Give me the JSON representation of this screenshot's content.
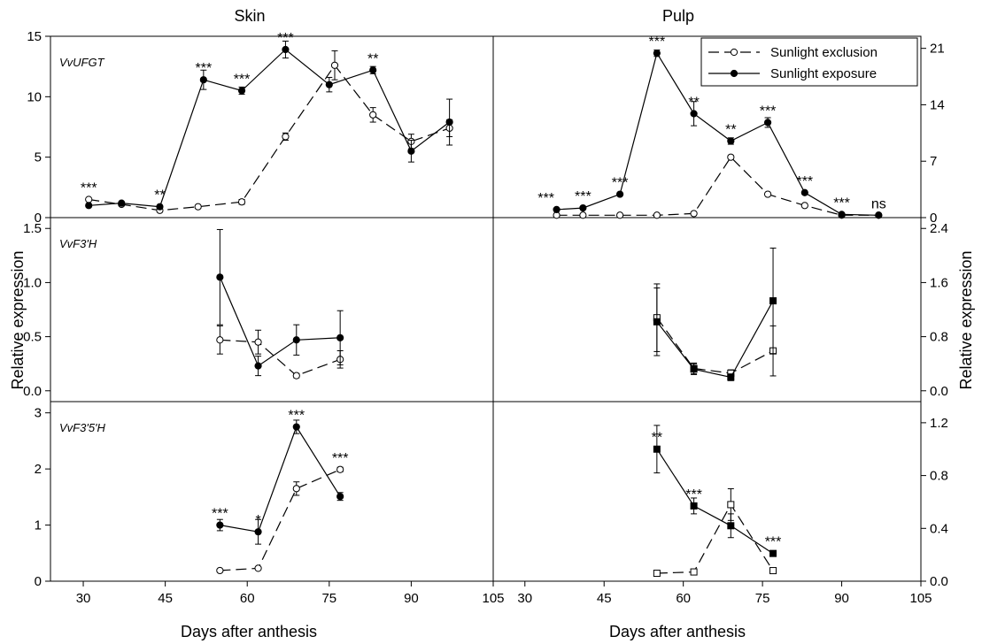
{
  "chart_data": {
    "type": "line",
    "columns": [
      "Skin",
      "Pulp"
    ],
    "xlabel": "Days after anthesis",
    "ylabel": "Relative expression",
    "xlim": [
      24,
      105
    ],
    "xticks": [
      "30",
      "45",
      "60",
      "75",
      "90",
      "105"
    ],
    "xtick_values": [
      30,
      45,
      60,
      75,
      90,
      105
    ],
    "legend": {
      "placement": "top-right",
      "entries": [
        "Sunlight exclusion",
        "Sunlight exposure"
      ]
    },
    "panels": [
      {
        "id": "ufgt-skin",
        "column": "Skin",
        "gene": "VvUFGT",
        "marker": "circle",
        "ylim": [
          0,
          15
        ],
        "yticks": [
          "0",
          "5",
          "10",
          "15"
        ],
        "ytick_values": [
          0,
          5,
          10,
          15
        ],
        "series": [
          {
            "name": "Sunlight exclusion",
            "x": [
              31,
              37,
              44,
              51,
              59,
              67,
              76,
              83,
              90,
              97
            ],
            "y": [
              1.5,
              1.1,
              0.6,
              0.9,
              1.3,
              6.7,
              12.6,
              8.5,
              6.3,
              7.4
            ],
            "err": [
              0.1,
              0.1,
              0.1,
              0.1,
              0.2,
              0.3,
              1.2,
              0.6,
              0.6,
              0.7
            ]
          },
          {
            "name": "Sunlight exposure",
            "x": [
              31,
              37,
              44,
              52,
              59,
              67,
              75,
              83,
              90,
              97
            ],
            "y": [
              1.0,
              1.2,
              0.9,
              11.4,
              10.5,
              13.9,
              11.0,
              12.2,
              5.5,
              7.9
            ],
            "err": [
              0.1,
              0.1,
              0.1,
              0.8,
              0.3,
              0.7,
              0.6,
              0.3,
              0.9,
              1.9
            ]
          }
        ],
        "annotations": [
          {
            "text": "***",
            "x": 31,
            "y": 1.5
          },
          {
            "text": "**",
            "x": 44,
            "y": 0.9
          },
          {
            "text": "***",
            "x": 52,
            "y": 11.4
          },
          {
            "text": "***",
            "x": 59,
            "y": 10.5
          },
          {
            "text": "***",
            "x": 67,
            "y": 13.9
          },
          {
            "text": "**",
            "x": 83,
            "y": 12.2
          }
        ]
      },
      {
        "id": "ufgt-pulp",
        "column": "Pulp",
        "gene": "",
        "marker": "circle",
        "ylim": [
          0,
          22.5
        ],
        "yticks": [
          "0",
          "7",
          "14",
          "21"
        ],
        "ytick_values": [
          0,
          7,
          14,
          21
        ],
        "series": [
          {
            "name": "Sunlight exclusion",
            "x": [
              36,
              41,
              48,
              55,
              62,
              69,
              76,
              83,
              90,
              97
            ],
            "y": [
              0.3,
              0.3,
              0.3,
              0.3,
              0.5,
              7.5,
              2.9,
              1.5,
              0.3,
              0.3
            ],
            "err": [
              0,
              0,
              0,
              0,
              0,
              0.2,
              0.1,
              0.1,
              0,
              0
            ]
          },
          {
            "name": "Sunlight exposure",
            "x": [
              36,
              41,
              48,
              55,
              62,
              69,
              76,
              83,
              90,
              97
            ],
            "y": [
              1.0,
              1.2,
              2.9,
              20.4,
              12.9,
              9.5,
              11.8,
              3.1,
              0.4,
              0.3
            ],
            "err": [
              0,
              0,
              0,
              0.4,
              1.5,
              0.4,
              0.6,
              0.1,
              0,
              0
            ]
          }
        ],
        "annotations": [
          {
            "text": "***",
            "x": 34,
            "y": 1.0
          },
          {
            "text": "***",
            "x": 41,
            "y": 1.2
          },
          {
            "text": "***",
            "x": 48,
            "y": 2.9
          },
          {
            "text": "***",
            "x": 55,
            "y": 20.4
          },
          {
            "text": "**",
            "x": 62,
            "y": 12.9
          },
          {
            "text": "**",
            "x": 69,
            "y": 9.5
          },
          {
            "text": "***",
            "x": 76,
            "y": 11.8
          },
          {
            "text": "***",
            "x": 83,
            "y": 3.1
          },
          {
            "text": "***",
            "x": 90,
            "y": 0.4
          },
          {
            "text": "ns",
            "x": 97,
            "y": 0.3
          }
        ]
      },
      {
        "id": "f3h-skin",
        "column": "Skin",
        "gene": "VvF3'H",
        "marker": "circle",
        "ylim": [
          -0.1,
          1.6
        ],
        "yticks": [
          "0.0",
          "0.5",
          "1.0",
          "1.5"
        ],
        "ytick_values": [
          0,
          0.5,
          1.0,
          1.5
        ],
        "series": [
          {
            "name": "Sunlight exclusion",
            "x": [
              55,
              62,
              69,
              77
            ],
            "y": [
              0.47,
              0.45,
              0.14,
              0.29
            ],
            "err": [
              0.13,
              0.11,
              0.02,
              0.08
            ]
          },
          {
            "name": "Sunlight exposure",
            "x": [
              55,
              62,
              69,
              77
            ],
            "y": [
              1.05,
              0.23,
              0.47,
              0.49
            ],
            "err": [
              0.44,
              0.09,
              0.14,
              0.25
            ]
          }
        ],
        "annotations": []
      },
      {
        "id": "f3h-pulp",
        "column": "Pulp",
        "gene": "",
        "marker": "square",
        "ylim": [
          -0.16,
          2.56
        ],
        "yticks": [
          "0.0",
          "0.8",
          "1.6",
          "2.4"
        ],
        "ytick_values": [
          0,
          0.8,
          1.6,
          2.4
        ],
        "series": [
          {
            "name": "Sunlight exclusion",
            "x": [
              55,
              62,
              69,
              77
            ],
            "y": [
              1.08,
              0.33,
              0.26,
              0.59
            ],
            "err": [
              0.5,
              0.08,
              0.05,
              0.37
            ]
          },
          {
            "name": "Sunlight exposure",
            "x": [
              55,
              62,
              69,
              77
            ],
            "y": [
              1.02,
              0.32,
              0.2,
              1.33
            ],
            "err": [
              0.5,
              0.08,
              0.05,
              0.78
            ]
          }
        ],
        "annotations": []
      },
      {
        "id": "f35h-skin",
        "column": "Skin",
        "gene": "VvF3'5'H",
        "marker": "circle",
        "ylim": [
          0,
          3.2
        ],
        "yticks": [
          "0",
          "1",
          "2",
          "3"
        ],
        "ytick_values": [
          0,
          1,
          2,
          3
        ],
        "series": [
          {
            "name": "Sunlight exclusion",
            "x": [
              55,
              62,
              69,
              77
            ],
            "y": [
              0.19,
              0.23,
              1.65,
              1.99
            ],
            "err": [
              0.02,
              0.02,
              0.12,
              0.04
            ]
          },
          {
            "name": "Sunlight exposure",
            "x": [
              55,
              62,
              69,
              77
            ],
            "y": [
              1.0,
              0.88,
              2.75,
              1.51
            ],
            "err": [
              0.1,
              0.22,
              0.12,
              0.07
            ]
          }
        ],
        "annotations": [
          {
            "text": "***",
            "x": 55,
            "y": 1.0
          },
          {
            "text": "*",
            "x": 62,
            "y": 0.88
          },
          {
            "text": "***",
            "x": 69,
            "y": 2.75
          },
          {
            "text": "***",
            "x": 77,
            "y": 1.99
          }
        ]
      },
      {
        "id": "f35h-pulp",
        "column": "Pulp",
        "gene": "",
        "marker": "square",
        "ylim": [
          0,
          1.36
        ],
        "yticks": [
          "0.0",
          "0.4",
          "0.8",
          "1.2"
        ],
        "ytick_values": [
          0,
          0.4,
          0.8,
          1.2
        ],
        "series": [
          {
            "name": "Sunlight exclusion",
            "x": [
              55,
              62,
              69,
              77
            ],
            "y": [
              0.06,
              0.07,
              0.58,
              0.08
            ],
            "err": [
              0,
              0,
              0.12,
              0
            ]
          },
          {
            "name": "Sunlight exposure",
            "x": [
              55,
              62,
              69,
              77
            ],
            "y": [
              1.0,
              0.57,
              0.42,
              0.21
            ],
            "err": [
              0.18,
              0.06,
              0.09,
              0.02
            ]
          }
        ],
        "annotations": [
          {
            "text": "**",
            "x": 55,
            "y": 1.0
          },
          {
            "text": "***",
            "x": 62,
            "y": 0.57
          },
          {
            "text": "***",
            "x": 77,
            "y": 0.21
          }
        ]
      }
    ]
  }
}
